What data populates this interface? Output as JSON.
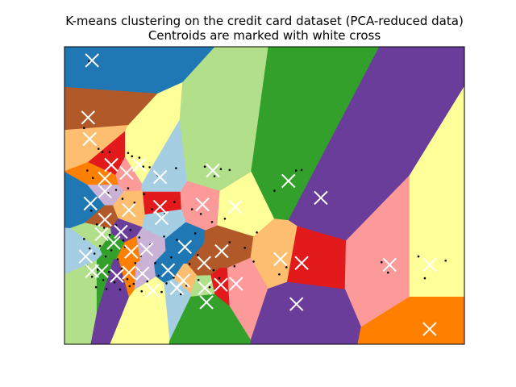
{
  "chart_data": {
    "type": "scatter",
    "title": "K-means clustering on the credit card dataset (PCA-reduced data)",
    "subtitle": "Centroids are marked with white cross",
    "xlabel": "",
    "ylabel": "",
    "xlim": [
      0,
      100
    ],
    "ylim": [
      0,
      100
    ],
    "axis_ticks": false,
    "grid": false,
    "legend": "none",
    "palette": [
      "#1f78b4",
      "#b15928",
      "#fdbf6f",
      "#e31a1c",
      "#fb9a99",
      "#ffff99",
      "#a6cee3",
      "#b2df8a",
      "#33a02c",
      "#6a3d9a",
      "#ff7f00",
      "#cab2d6"
    ],
    "centroid_marker": "white-cross",
    "centroids": [
      {
        "x": 6.9,
        "y": 95.4
      },
      {
        "x": 5.9,
        "y": 76.2
      },
      {
        "x": 6.3,
        "y": 69.0
      },
      {
        "x": 11.7,
        "y": 60.3
      },
      {
        "x": 15.5,
        "y": 57.6
      },
      {
        "x": 18.7,
        "y": 60.3
      },
      {
        "x": 23.9,
        "y": 56.2
      },
      {
        "x": 37.1,
        "y": 58.4
      },
      {
        "x": 56.0,
        "y": 54.9
      },
      {
        "x": 64.1,
        "y": 49.2
      },
      {
        "x": 10.1,
        "y": 55.7
      },
      {
        "x": 10.1,
        "y": 51.4
      },
      {
        "x": 6.5,
        "y": 47.3
      },
      {
        "x": 10.1,
        "y": 41.9
      },
      {
        "x": 16.1,
        "y": 45.1
      },
      {
        "x": 23.9,
        "y": 46.2
      },
      {
        "x": 34.5,
        "y": 47.0
      },
      {
        "x": 42.7,
        "y": 46.2
      },
      {
        "x": 24.3,
        "y": 42.4
      },
      {
        "x": 9.3,
        "y": 37.0
      },
      {
        "x": 12.3,
        "y": 34.1
      },
      {
        "x": 14.1,
        "y": 37.8
      },
      {
        "x": 16.7,
        "y": 31.1
      },
      {
        "x": 20.5,
        "y": 31.9
      },
      {
        "x": 30.1,
        "y": 32.7
      },
      {
        "x": 39.3,
        "y": 31.3
      },
      {
        "x": 54.0,
        "y": 28.6
      },
      {
        "x": 59.3,
        "y": 27.3
      },
      {
        "x": 81.3,
        "y": 26.7
      },
      {
        "x": 91.3,
        "y": 26.7
      },
      {
        "x": 5.3,
        "y": 29.5
      },
      {
        "x": 6.9,
        "y": 24.6
      },
      {
        "x": 9.3,
        "y": 24.6
      },
      {
        "x": 13.1,
        "y": 23.0
      },
      {
        "x": 16.1,
        "y": 24.1
      },
      {
        "x": 19.5,
        "y": 23.8
      },
      {
        "x": 25.9,
        "y": 24.9
      },
      {
        "x": 34.9,
        "y": 27.3
      },
      {
        "x": 29.7,
        "y": 21.4
      },
      {
        "x": 39.1,
        "y": 20.0
      },
      {
        "x": 42.9,
        "y": 20.3
      },
      {
        "x": 22.1,
        "y": 18.1
      },
      {
        "x": 28.1,
        "y": 18.9
      },
      {
        "x": 35.1,
        "y": 18.9
      },
      {
        "x": 35.5,
        "y": 14.1
      },
      {
        "x": 58.0,
        "y": 13.5
      },
      {
        "x": 91.3,
        "y": 5.1
      }
    ],
    "points": [
      {
        "x": 6.1,
        "y": 95.1
      },
      {
        "x": 4.9,
        "y": 72.7
      },
      {
        "x": 8.5,
        "y": 65.7
      },
      {
        "x": 9.5,
        "y": 64.6
      },
      {
        "x": 11.3,
        "y": 64.6
      },
      {
        "x": 15.9,
        "y": 64.3
      },
      {
        "x": 16.9,
        "y": 63.2
      },
      {
        "x": 18.7,
        "y": 62.7
      },
      {
        "x": 19.7,
        "y": 59.7
      },
      {
        "x": 21.3,
        "y": 59.5
      },
      {
        "x": 23.3,
        "y": 56.8
      },
      {
        "x": 27.9,
        "y": 59.2
      },
      {
        "x": 35.1,
        "y": 59.7
      },
      {
        "x": 39.1,
        "y": 58.9
      },
      {
        "x": 41.3,
        "y": 58.6
      },
      {
        "x": 37.5,
        "y": 56.5
      },
      {
        "x": 57.9,
        "y": 58.4
      },
      {
        "x": 59.3,
        "y": 58.6
      },
      {
        "x": 52.5,
        "y": 51.6
      },
      {
        "x": 5.7,
        "y": 58.4
      },
      {
        "x": 7.1,
        "y": 55.9
      },
      {
        "x": 8.7,
        "y": 53.5
      },
      {
        "x": 10.9,
        "y": 50.8
      },
      {
        "x": 12.9,
        "y": 51.9
      },
      {
        "x": 14.5,
        "y": 48.9
      },
      {
        "x": 15.9,
        "y": 52.4
      },
      {
        "x": 17.5,
        "y": 47.6
      },
      {
        "x": 19.9,
        "y": 50.5
      },
      {
        "x": 21.9,
        "y": 45.4
      },
      {
        "x": 25.1,
        "y": 43.8
      },
      {
        "x": 27.5,
        "y": 47.8
      },
      {
        "x": 31.9,
        "y": 45.4
      },
      {
        "x": 34.1,
        "y": 43.8
      },
      {
        "x": 36.9,
        "y": 41.1
      },
      {
        "x": 40.1,
        "y": 42.2
      },
      {
        "x": 48.1,
        "y": 37.6
      },
      {
        "x": 6.7,
        "y": 44.9
      },
      {
        "x": 8.1,
        "y": 40.3
      },
      {
        "x": 9.9,
        "y": 39.2
      },
      {
        "x": 11.3,
        "y": 36.8
      },
      {
        "x": 12.9,
        "y": 40.0
      },
      {
        "x": 14.7,
        "y": 34.9
      },
      {
        "x": 16.5,
        "y": 38.4
      },
      {
        "x": 18.7,
        "y": 35.9
      },
      {
        "x": 21.5,
        "y": 33.5
      },
      {
        "x": 24.9,
        "y": 36.2
      },
      {
        "x": 28.1,
        "y": 35.1
      },
      {
        "x": 32.7,
        "y": 37.3
      },
      {
        "x": 41.3,
        "y": 34.3
      },
      {
        "x": 45.1,
        "y": 32.4
      },
      {
        "x": 4.9,
        "y": 35.4
      },
      {
        "x": 6.3,
        "y": 32.2
      },
      {
        "x": 7.5,
        "y": 30.5
      },
      {
        "x": 8.9,
        "y": 33.0
      },
      {
        "x": 10.3,
        "y": 29.5
      },
      {
        "x": 11.7,
        "y": 31.6
      },
      {
        "x": 13.3,
        "y": 28.6
      },
      {
        "x": 15.1,
        "y": 32.7
      },
      {
        "x": 17.7,
        "y": 27.3
      },
      {
        "x": 19.1,
        "y": 29.7
      },
      {
        "x": 22.7,
        "y": 27.3
      },
      {
        "x": 26.7,
        "y": 29.2
      },
      {
        "x": 31.3,
        "y": 27.0
      },
      {
        "x": 33.3,
        "y": 30.0
      },
      {
        "x": 37.3,
        "y": 24.9
      },
      {
        "x": 42.5,
        "y": 26.2
      },
      {
        "x": 47.3,
        "y": 27.8
      },
      {
        "x": 53.7,
        "y": 23.5
      },
      {
        "x": 55.5,
        "y": 25.9
      },
      {
        "x": 79.3,
        "y": 27.6
      },
      {
        "x": 80.9,
        "y": 24.1
      },
      {
        "x": 88.5,
        "y": 29.5
      },
      {
        "x": 90.1,
        "y": 22.2
      },
      {
        "x": 95.3,
        "y": 28.1
      },
      {
        "x": 5.5,
        "y": 26.5
      },
      {
        "x": 6.9,
        "y": 22.7
      },
      {
        "x": 8.3,
        "y": 25.1
      },
      {
        "x": 9.7,
        "y": 21.6
      },
      {
        "x": 11.1,
        "y": 24.3
      },
      {
        "x": 12.5,
        "y": 20.8
      },
      {
        "x": 14.3,
        "y": 25.4
      },
      {
        "x": 15.7,
        "y": 21.9
      },
      {
        "x": 17.3,
        "y": 20.3
      },
      {
        "x": 18.9,
        "y": 24.6
      },
      {
        "x": 20.7,
        "y": 21.1
      },
      {
        "x": 23.5,
        "y": 23.0
      },
      {
        "x": 25.5,
        "y": 20.5
      },
      {
        "x": 27.3,
        "y": 22.4
      },
      {
        "x": 30.5,
        "y": 19.7
      },
      {
        "x": 33.5,
        "y": 21.6
      },
      {
        "x": 36.3,
        "y": 19.2
      },
      {
        "x": 38.7,
        "y": 22.2
      },
      {
        "x": 7.9,
        "y": 19.2
      },
      {
        "x": 10.5,
        "y": 18.6
      },
      {
        "x": 13.9,
        "y": 18.4
      },
      {
        "x": 16.3,
        "y": 19.5
      },
      {
        "x": 19.3,
        "y": 17.8
      },
      {
        "x": 24.3,
        "y": 17.6
      },
      {
        "x": 29.1,
        "y": 16.8
      }
    ]
  }
}
